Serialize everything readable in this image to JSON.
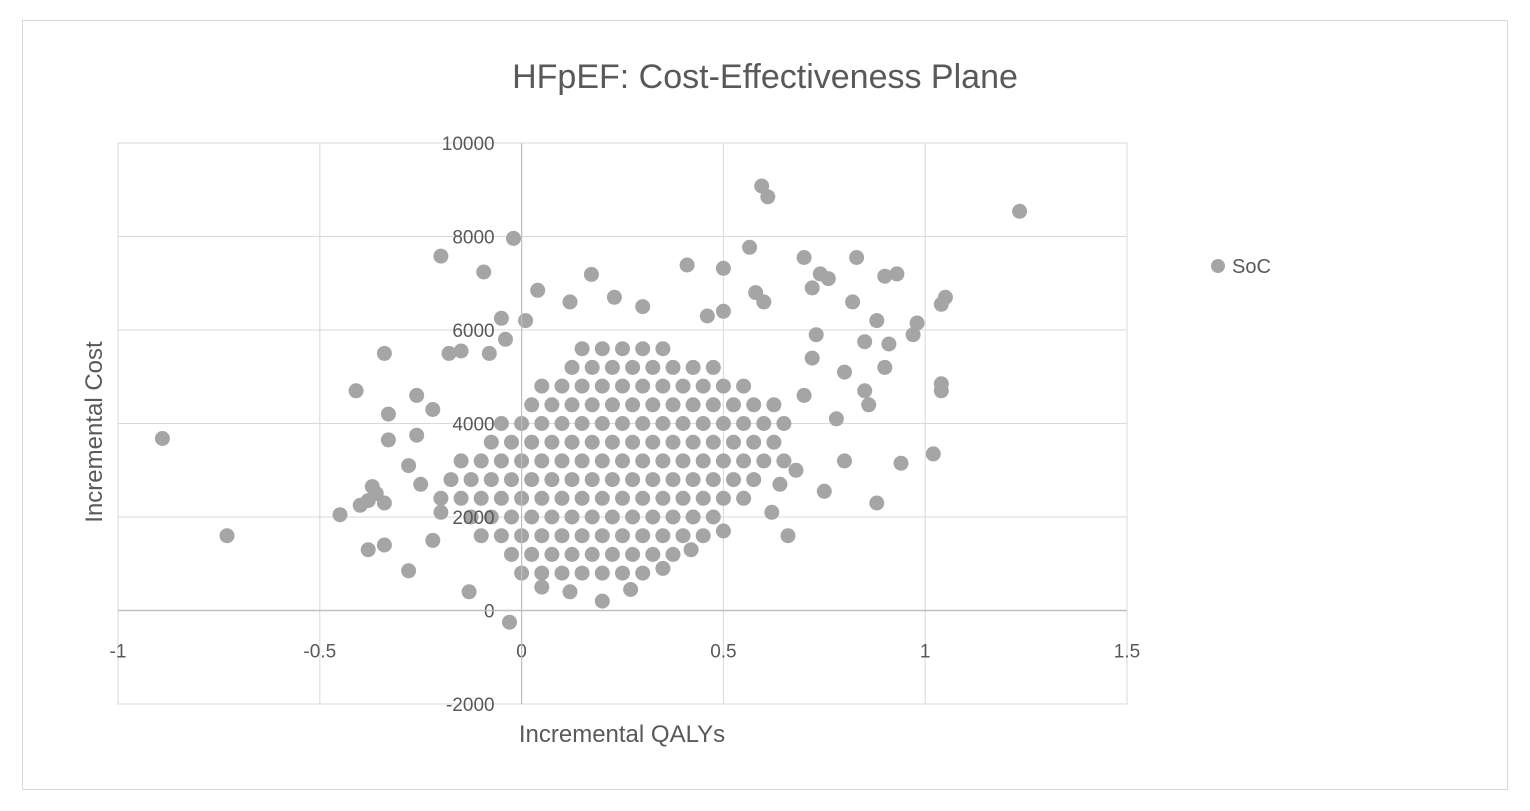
{
  "chart_data": {
    "type": "scatter",
    "title": "HFpEF: Cost-Effectiveness Plane",
    "xlabel": "Incremental QALYs",
    "ylabel": "Incremental Cost",
    "xlim": [
      -1,
      1.5
    ],
    "ylim": [
      -2000,
      10000
    ],
    "xticks": [
      "-1",
      "-0.5",
      "0",
      "0.5",
      "1",
      "1.5"
    ],
    "yticks": [
      "-2000",
      "0",
      "2000",
      "4000",
      "6000",
      "8000",
      "10000"
    ],
    "grid": true,
    "legend_position": "right",
    "series": [
      {
        "name": "SoC",
        "color": "#a5a5a5",
        "points": [
          [
            -0.89,
            3680
          ],
          [
            -0.73,
            1600
          ],
          [
            1.234,
            8540
          ],
          [
            0.595,
            9080
          ],
          [
            0.61,
            8850
          ],
          [
            -0.02,
            7960
          ],
          [
            -0.2,
            7580
          ],
          [
            -0.094,
            7240
          ],
          [
            0.173,
            7190
          ],
          [
            0.41,
            7390
          ],
          [
            0.5,
            7320
          ],
          [
            0.565,
            7770
          ],
          [
            0.7,
            7550
          ],
          [
            0.74,
            7200
          ],
          [
            0.76,
            7100
          ],
          [
            0.83,
            7550
          ],
          [
            0.9,
            7150
          ],
          [
            0.93,
            7200
          ],
          [
            0.72,
            6900
          ],
          [
            0.58,
            6800
          ],
          [
            0.6,
            6600
          ],
          [
            0.82,
            6600
          ],
          [
            1.05,
            6700
          ],
          [
            1.04,
            6550
          ],
          [
            0.98,
            6150
          ],
          [
            0.97,
            5900
          ],
          [
            0.88,
            6200
          ],
          [
            0.91,
            5700
          ],
          [
            0.9,
            5200
          ],
          [
            1.04,
            4850
          ],
          [
            1.04,
            4700
          ],
          [
            0.85,
            4700
          ],
          [
            0.86,
            4400
          ],
          [
            1.02,
            3350
          ],
          [
            0.94,
            3150
          ],
          [
            0.88,
            2300
          ],
          [
            0.75,
            2550
          ],
          [
            0.66,
            1600
          ],
          [
            0.2,
            200
          ],
          [
            -0.03,
            -250
          ],
          [
            -0.13,
            400
          ],
          [
            -0.28,
            850
          ],
          [
            -0.38,
            1300
          ],
          [
            -0.34,
            1400
          ],
          [
            -0.45,
            2050
          ],
          [
            -0.4,
            2250
          ],
          [
            -0.38,
            2350
          ],
          [
            -0.36,
            2500
          ],
          [
            -0.34,
            2300
          ],
          [
            -0.37,
            2650
          ],
          [
            -0.33,
            3650
          ],
          [
            -0.33,
            4200
          ],
          [
            -0.41,
            4700
          ],
          [
            -0.34,
            5500
          ],
          [
            -0.26,
            3750
          ],
          [
            -0.26,
            4600
          ],
          [
            -0.18,
            5500
          ],
          [
            -0.15,
            5550
          ],
          [
            -0.08,
            5500
          ],
          [
            -0.04,
            5800
          ],
          [
            -0.05,
            6250
          ],
          [
            0.01,
            6200
          ],
          [
            0.04,
            6850
          ],
          [
            0.12,
            6600
          ],
          [
            0.23,
            6700
          ],
          [
            0.3,
            6500
          ],
          [
            0.46,
            6300
          ],
          [
            0.5,
            6400
          ],
          [
            0.73,
            5900
          ],
          [
            0.85,
            5750
          ],
          [
            0.12,
            400
          ],
          [
            0.27,
            450
          ],
          [
            0.8,
            3200
          ],
          [
            0.78,
            4100
          ],
          [
            0.7,
            4600
          ],
          [
            0.68,
            3000
          ],
          [
            0.72,
            5400
          ],
          [
            0.8,
            5100
          ],
          [
            0.62,
            2100
          ],
          [
            0.64,
            2700
          ],
          [
            -0.22,
            1500
          ],
          [
            -0.2,
            2100
          ],
          [
            -0.25,
            2700
          ],
          [
            -0.28,
            3100
          ],
          [
            -0.22,
            4300
          ],
          [
            0.05,
            500
          ],
          [
            0.35,
            900
          ],
          [
            0.42,
            1300
          ],
          [
            0.5,
            1700
          ],
          [
            0,
            800
          ],
          [
            0.05,
            800
          ],
          [
            0.1,
            800
          ],
          [
            0.15,
            800
          ],
          [
            0.2,
            800
          ],
          [
            0.25,
            800
          ],
          [
            0.3,
            800
          ],
          [
            -0.025,
            1200
          ],
          [
            0.025,
            1200
          ],
          [
            0.075,
            1200
          ],
          [
            0.125,
            1200
          ],
          [
            0.175,
            1200
          ],
          [
            0.225,
            1200
          ],
          [
            0.275,
            1200
          ],
          [
            0.325,
            1200
          ],
          [
            0.375,
            1200
          ],
          [
            -0.1,
            1600
          ],
          [
            -0.05,
            1600
          ],
          [
            0,
            1600
          ],
          [
            0.05,
            1600
          ],
          [
            0.1,
            1600
          ],
          [
            0.15,
            1600
          ],
          [
            0.2,
            1600
          ],
          [
            0.25,
            1600
          ],
          [
            0.3,
            1600
          ],
          [
            0.35,
            1600
          ],
          [
            0.4,
            1600
          ],
          [
            0.45,
            1600
          ],
          [
            -0.125,
            2000
          ],
          [
            -0.075,
            2000
          ],
          [
            -0.025,
            2000
          ],
          [
            0.025,
            2000
          ],
          [
            0.075,
            2000
          ],
          [
            0.125,
            2000
          ],
          [
            0.175,
            2000
          ],
          [
            0.225,
            2000
          ],
          [
            0.275,
            2000
          ],
          [
            0.325,
            2000
          ],
          [
            0.375,
            2000
          ],
          [
            0.425,
            2000
          ],
          [
            0.475,
            2000
          ],
          [
            -0.2,
            2400
          ],
          [
            -0.15,
            2400
          ],
          [
            -0.1,
            2400
          ],
          [
            -0.05,
            2400
          ],
          [
            0,
            2400
          ],
          [
            0.05,
            2400
          ],
          [
            0.1,
            2400
          ],
          [
            0.15,
            2400
          ],
          [
            0.2,
            2400
          ],
          [
            0.25,
            2400
          ],
          [
            0.3,
            2400
          ],
          [
            0.35,
            2400
          ],
          [
            0.4,
            2400
          ],
          [
            0.45,
            2400
          ],
          [
            0.5,
            2400
          ],
          [
            0.55,
            2400
          ],
          [
            -0.175,
            2800
          ],
          [
            -0.125,
            2800
          ],
          [
            -0.075,
            2800
          ],
          [
            -0.025,
            2800
          ],
          [
            0.025,
            2800
          ],
          [
            0.075,
            2800
          ],
          [
            0.125,
            2800
          ],
          [
            0.175,
            2800
          ],
          [
            0.225,
            2800
          ],
          [
            0.275,
            2800
          ],
          [
            0.325,
            2800
          ],
          [
            0.375,
            2800
          ],
          [
            0.425,
            2800
          ],
          [
            0.475,
            2800
          ],
          [
            0.525,
            2800
          ],
          [
            0.575,
            2800
          ],
          [
            -0.15,
            3200
          ],
          [
            -0.1,
            3200
          ],
          [
            -0.05,
            3200
          ],
          [
            0,
            3200
          ],
          [
            0.05,
            3200
          ],
          [
            0.1,
            3200
          ],
          [
            0.15,
            3200
          ],
          [
            0.2,
            3200
          ],
          [
            0.25,
            3200
          ],
          [
            0.3,
            3200
          ],
          [
            0.35,
            3200
          ],
          [
            0.4,
            3200
          ],
          [
            0.45,
            3200
          ],
          [
            0.5,
            3200
          ],
          [
            0.55,
            3200
          ],
          [
            0.6,
            3200
          ],
          [
            0.65,
            3200
          ],
          [
            -0.075,
            3600
          ],
          [
            -0.025,
            3600
          ],
          [
            0.025,
            3600
          ],
          [
            0.075,
            3600
          ],
          [
            0.125,
            3600
          ],
          [
            0.175,
            3600
          ],
          [
            0.225,
            3600
          ],
          [
            0.275,
            3600
          ],
          [
            0.325,
            3600
          ],
          [
            0.375,
            3600
          ],
          [
            0.425,
            3600
          ],
          [
            0.475,
            3600
          ],
          [
            0.525,
            3600
          ],
          [
            0.575,
            3600
          ],
          [
            0.625,
            3600
          ],
          [
            -0.05,
            4000
          ],
          [
            0,
            4000
          ],
          [
            0.05,
            4000
          ],
          [
            0.1,
            4000
          ],
          [
            0.15,
            4000
          ],
          [
            0.2,
            4000
          ],
          [
            0.25,
            4000
          ],
          [
            0.3,
            4000
          ],
          [
            0.35,
            4000
          ],
          [
            0.4,
            4000
          ],
          [
            0.45,
            4000
          ],
          [
            0.5,
            4000
          ],
          [
            0.55,
            4000
          ],
          [
            0.6,
            4000
          ],
          [
            0.65,
            4000
          ],
          [
            0.025,
            4400
          ],
          [
            0.075,
            4400
          ],
          [
            0.125,
            4400
          ],
          [
            0.175,
            4400
          ],
          [
            0.225,
            4400
          ],
          [
            0.275,
            4400
          ],
          [
            0.325,
            4400
          ],
          [
            0.375,
            4400
          ],
          [
            0.425,
            4400
          ],
          [
            0.475,
            4400
          ],
          [
            0.525,
            4400
          ],
          [
            0.575,
            4400
          ],
          [
            0.625,
            4400
          ],
          [
            0.05,
            4800
          ],
          [
            0.1,
            4800
          ],
          [
            0.15,
            4800
          ],
          [
            0.2,
            4800
          ],
          [
            0.25,
            4800
          ],
          [
            0.3,
            4800
          ],
          [
            0.35,
            4800
          ],
          [
            0.4,
            4800
          ],
          [
            0.45,
            4800
          ],
          [
            0.5,
            4800
          ],
          [
            0.55,
            4800
          ],
          [
            0.125,
            5200
          ],
          [
            0.175,
            5200
          ],
          [
            0.225,
            5200
          ],
          [
            0.275,
            5200
          ],
          [
            0.325,
            5200
          ],
          [
            0.375,
            5200
          ],
          [
            0.425,
            5200
          ],
          [
            0.475,
            5200
          ],
          [
            0.15,
            5600
          ],
          [
            0.2,
            5600
          ],
          [
            0.25,
            5600
          ],
          [
            0.3,
            5600
          ],
          [
            0.35,
            5600
          ]
        ]
      }
    ]
  }
}
